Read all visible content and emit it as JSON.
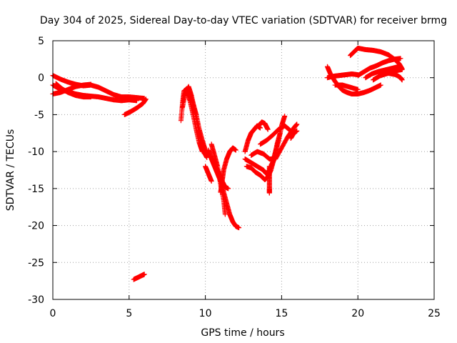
{
  "chart_data": {
    "type": "scatter",
    "title": "Day 304 of 2025, Sidereal Day-to-day VTEC variation (SDTVAR) for receiver brmg",
    "xlabel": "GPS time / hours",
    "ylabel": "SDTVAR / TECUs",
    "xlim": [
      0,
      25
    ],
    "ylim": [
      -30,
      5
    ],
    "xticks": [
      0,
      5,
      10,
      15,
      20,
      25
    ],
    "yticks": [
      5,
      0,
      -5,
      -10,
      -15,
      -20,
      -25,
      -30
    ],
    "xtick_labels": [
      "0",
      "5",
      "10",
      "15",
      "20",
      "25"
    ],
    "ytick_labels": [
      "5",
      "0",
      "-5",
      "-10",
      "-15",
      "-20",
      "-25",
      "-30"
    ],
    "grid": true,
    "marker": "+",
    "color": "#ff0000",
    "series": [
      {
        "tracks": [
          [
            [
              0.0,
              0.3
            ],
            [
              0.5,
              -0.2
            ],
            [
              1.0,
              -0.6
            ],
            [
              1.5,
              -0.9
            ],
            [
              2.0,
              -1.1
            ],
            [
              2.5,
              -1.0
            ],
            [
              3.0,
              -1.3
            ],
            [
              3.5,
              -1.8
            ],
            [
              4.0,
              -2.3
            ],
            [
              4.5,
              -2.6
            ],
            [
              5.0,
              -2.6
            ],
            [
              5.5,
              -2.7
            ],
            [
              6.0,
              -2.8
            ]
          ],
          [
            [
              0.0,
              -1.0
            ],
            [
              0.5,
              -1.6
            ],
            [
              1.0,
              -1.9
            ],
            [
              1.5,
              -2.2
            ],
            [
              2.0,
              -2.4
            ],
            [
              2.5,
              -2.5
            ],
            [
              3.0,
              -2.6
            ],
            [
              3.5,
              -2.8
            ],
            [
              4.0,
              -3.0
            ],
            [
              4.5,
              -3.1
            ],
            [
              5.0,
              -3.0
            ],
            [
              5.5,
              -3.1
            ]
          ],
          [
            [
              0.2,
              -0.8
            ],
            [
              0.6,
              -1.5
            ],
            [
              1.0,
              -2.0
            ],
            [
              1.5,
              -2.4
            ],
            [
              2.0,
              -2.6
            ],
            [
              2.5,
              -2.6
            ]
          ],
          [
            [
              0.0,
              -2.2
            ],
            [
              0.5,
              -2.0
            ],
            [
              1.0,
              -1.6
            ],
            [
              1.5,
              -1.2
            ],
            [
              2.0,
              -1.0
            ],
            [
              2.5,
              -0.9
            ]
          ],
          [
            [
              4.7,
              -5.0
            ],
            [
              5.1,
              -4.6
            ],
            [
              5.5,
              -4.1
            ],
            [
              5.9,
              -3.5
            ],
            [
              6.1,
              -2.9
            ]
          ],
          [
            [
              5.3,
              -27.3
            ],
            [
              5.6,
              -27.0
            ],
            [
              5.9,
              -26.7
            ],
            [
              6.0,
              -26.6
            ]
          ],
          [
            [
              8.4,
              -5.8
            ],
            [
              8.5,
              -3.5
            ],
            [
              8.6,
              -1.8
            ],
            [
              8.8,
              -1.5
            ],
            [
              9.0,
              -2.2
            ],
            [
              9.2,
              -3.5
            ],
            [
              9.4,
              -5.0
            ],
            [
              9.6,
              -7.0
            ],
            [
              9.8,
              -8.5
            ],
            [
              10.0,
              -9.8
            ],
            [
              10.2,
              -10.5
            ]
          ],
          [
            [
              8.5,
              -4.0
            ],
            [
              8.7,
              -2.0
            ],
            [
              8.9,
              -1.2
            ],
            [
              9.1,
              -2.5
            ],
            [
              9.3,
              -4.5
            ],
            [
              9.5,
              -6.5
            ],
            [
              9.7,
              -8.5
            ],
            [
              9.9,
              -10.0
            ],
            [
              10.1,
              -10.8
            ]
          ],
          [
            [
              8.6,
              -2.5
            ],
            [
              8.8,
              -1.8
            ],
            [
              9.0,
              -3.2
            ],
            [
              9.2,
              -5.0
            ],
            [
              9.4,
              -7.0
            ],
            [
              9.6,
              -8.8
            ],
            [
              9.8,
              -10.0
            ]
          ],
          [
            [
              10.2,
              -9.8
            ],
            [
              10.4,
              -11.0
            ],
            [
              10.6,
              -12.0
            ],
            [
              10.8,
              -13.0
            ],
            [
              11.0,
              -14.0
            ],
            [
              11.2,
              -15.5
            ],
            [
              11.4,
              -17.0
            ],
            [
              11.6,
              -18.5
            ],
            [
              11.8,
              -19.5
            ],
            [
              12.0,
              -20.1
            ],
            [
              12.2,
              -20.3
            ]
          ],
          [
            [
              10.4,
              -9.0
            ],
            [
              10.6,
              -10.5
            ],
            [
              10.8,
              -12.0
            ],
            [
              11.0,
              -14.5
            ],
            [
              11.2,
              -16.5
            ],
            [
              11.3,
              -18.5
            ]
          ],
          [
            [
              10.5,
              -11.0
            ],
            [
              10.7,
              -12.0
            ],
            [
              10.9,
              -13.0
            ],
            [
              11.1,
              -14.0
            ],
            [
              11.3,
              -14.8
            ],
            [
              11.5,
              -15.0
            ]
          ],
          [
            [
              11.0,
              -15.5
            ],
            [
              11.1,
              -14.0
            ],
            [
              11.2,
              -12.5
            ],
            [
              11.4,
              -11.0
            ],
            [
              11.6,
              -10.0
            ],
            [
              11.8,
              -9.5
            ],
            [
              12.0,
              -9.8
            ]
          ],
          [
            [
              10.0,
              -12.0
            ],
            [
              10.2,
              -13.0
            ],
            [
              10.4,
              -14.0
            ]
          ],
          [
            [
              12.6,
              -10.0
            ],
            [
              12.8,
              -8.5
            ],
            [
              13.0,
              -7.5
            ],
            [
              13.2,
              -7.0
            ],
            [
              13.4,
              -6.5
            ],
            [
              13.6,
              -6.8
            ]
          ],
          [
            [
              12.6,
              -11.0
            ],
            [
              13.0,
              -11.5
            ],
            [
              13.4,
              -12.0
            ],
            [
              13.8,
              -12.5
            ],
            [
              14.0,
              -13.0
            ],
            [
              14.2,
              -12.5
            ],
            [
              14.4,
              -11.5
            ],
            [
              14.6,
              -10.0
            ],
            [
              14.8,
              -8.5
            ],
            [
              15.0,
              -6.5
            ],
            [
              15.2,
              -5.2
            ]
          ],
          [
            [
              12.7,
              -12.0
            ],
            [
              13.0,
              -12.2
            ],
            [
              13.3,
              -12.8
            ],
            [
              13.6,
              -13.2
            ],
            [
              13.9,
              -13.8
            ],
            [
              14.1,
              -13.4
            ],
            [
              14.3,
              -12.5
            ],
            [
              14.5,
              -11.0
            ],
            [
              14.7,
              -9.0
            ],
            [
              14.9,
              -7.5
            ]
          ],
          [
            [
              13.0,
              -10.5
            ],
            [
              13.4,
              -10.0
            ],
            [
              13.8,
              -10.3
            ],
            [
              14.2,
              -11.0
            ],
            [
              14.6,
              -11.0
            ],
            [
              15.0,
              -9.5
            ],
            [
              15.4,
              -8.0
            ],
            [
              15.8,
              -6.8
            ],
            [
              16.0,
              -6.3
            ]
          ],
          [
            [
              13.6,
              -9.0
            ],
            [
              14.0,
              -8.5
            ],
            [
              14.4,
              -7.8
            ],
            [
              14.8,
              -7.0
            ],
            [
              15.2,
              -6.5
            ],
            [
              15.6,
              -7.2
            ]
          ],
          [
            [
              13.5,
              -6.5
            ],
            [
              13.7,
              -6.0
            ],
            [
              13.9,
              -6.2
            ],
            [
              14.1,
              -7.0
            ]
          ],
          [
            [
              14.2,
              -12.0
            ],
            [
              14.2,
              -13.5
            ],
            [
              14.2,
              -15.0
            ],
            [
              14.2,
              -15.6
            ]
          ],
          [
            [
              15.6,
              -8.2
            ],
            [
              15.8,
              -7.5
            ],
            [
              16.0,
              -7.2
            ]
          ],
          [
            [
              18.0,
              1.5
            ],
            [
              18.2,
              0.5
            ],
            [
              18.5,
              -0.5
            ],
            [
              18.8,
              -1.3
            ],
            [
              19.0,
              -1.7
            ],
            [
              19.3,
              -2.0
            ],
            [
              19.6,
              -2.2
            ],
            [
              20.0,
              -2.2
            ],
            [
              20.4,
              -2.0
            ],
            [
              20.8,
              -1.7
            ],
            [
              21.2,
              -1.3
            ],
            [
              21.5,
              -1.0
            ]
          ],
          [
            [
              18.0,
              0.0
            ],
            [
              18.4,
              0.2
            ],
            [
              18.8,
              0.3
            ],
            [
              19.2,
              0.4
            ],
            [
              19.6,
              0.5
            ],
            [
              20.0,
              0.4
            ]
          ],
          [
            [
              18.5,
              -1.0
            ],
            [
              19.0,
              -1.0
            ],
            [
              19.5,
              -1.3
            ],
            [
              20.0,
              -1.6
            ]
          ],
          [
            [
              19.5,
              3.0
            ],
            [
              19.8,
              3.6
            ],
            [
              20.0,
              4.0
            ],
            [
              20.5,
              3.8
            ],
            [
              21.0,
              3.7
            ],
            [
              21.5,
              3.5
            ],
            [
              22.0,
              3.1
            ],
            [
              22.4,
              2.5
            ],
            [
              22.7,
              1.9
            ],
            [
              22.9,
              1.2
            ]
          ],
          [
            [
              20.0,
              0.3
            ],
            [
              20.4,
              0.8
            ],
            [
              20.8,
              1.3
            ],
            [
              21.2,
              1.6
            ],
            [
              21.6,
              2.0
            ],
            [
              22.0,
              2.3
            ],
            [
              22.4,
              2.5
            ],
            [
              22.8,
              2.6
            ]
          ],
          [
            [
              20.5,
              0.0
            ],
            [
              20.9,
              0.5
            ],
            [
              21.3,
              0.8
            ],
            [
              21.7,
              1.0
            ],
            [
              22.1,
              1.2
            ],
            [
              22.5,
              1.4
            ],
            [
              22.8,
              1.5
            ]
          ],
          [
            [
              21.0,
              -0.3
            ],
            [
              21.4,
              0.2
            ],
            [
              21.8,
              0.6
            ],
            [
              22.2,
              0.9
            ],
            [
              22.6,
              1.0
            ],
            [
              22.9,
              1.1
            ]
          ],
          [
            [
              21.5,
              0.3
            ],
            [
              22.0,
              0.6
            ],
            [
              22.5,
              0.4
            ],
            [
              22.8,
              0.0
            ],
            [
              22.9,
              -0.3
            ]
          ]
        ]
      }
    ]
  }
}
